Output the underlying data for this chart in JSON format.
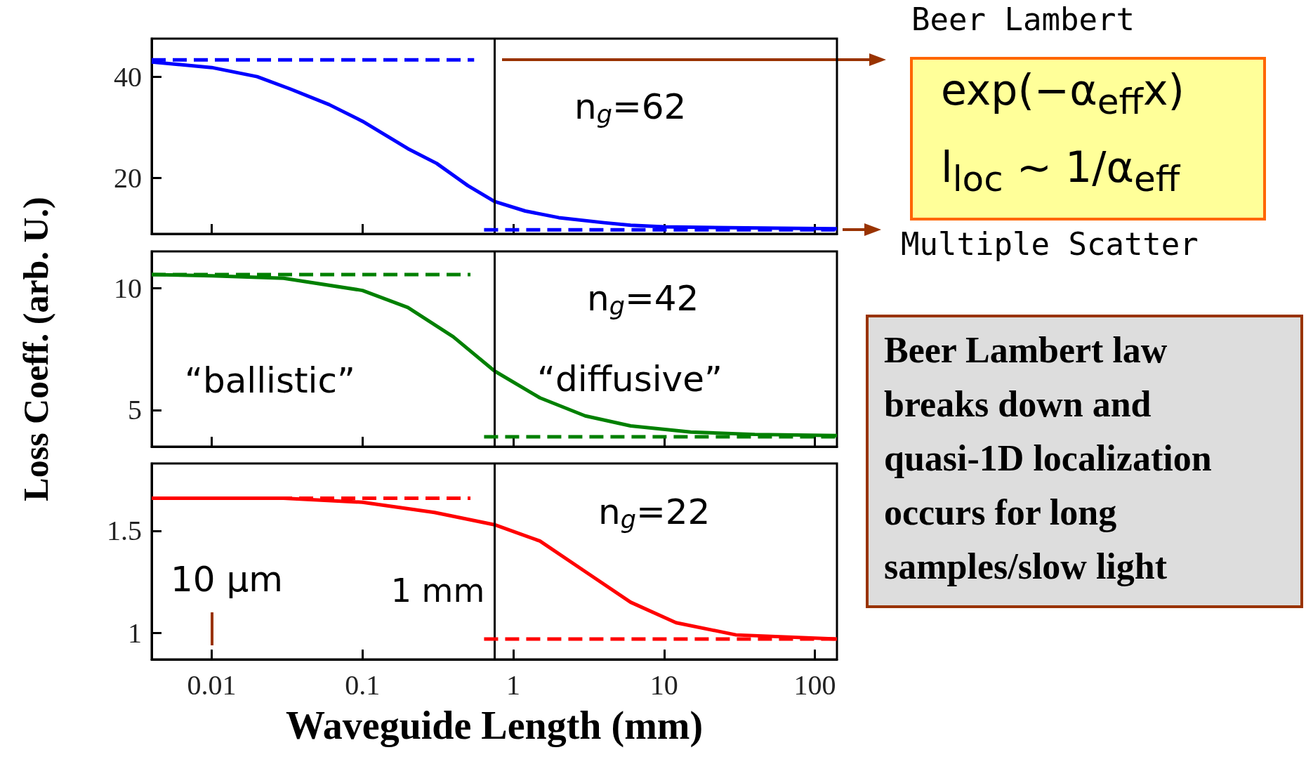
{
  "chart_data": [
    {
      "type": "line",
      "xlim": [
        0.004,
        140
      ],
      "xticks": [
        0.01,
        0.1,
        1,
        10,
        100
      ],
      "ylim": [
        9,
        47.5
      ],
      "yticks": [
        20,
        40
      ],
      "log": "x",
      "grid": false,
      "marker": "none",
      "tick_labels": "y",
      "series": [
        {
          "color": "#0000ff",
          "x": [
            0.004,
            0.01,
            0.02,
            0.033,
            0.06,
            0.1,
            0.2,
            0.31,
            0.5,
            0.75,
            1.2,
            2,
            4,
            6,
            10,
            27,
            60,
            140
          ],
          "values": [
            42.9,
            41.8,
            40,
            37.6,
            34.5,
            31.2,
            25.8,
            22.9,
            18.5,
            15.4,
            13.5,
            12.2,
            11.2,
            10.7,
            10.4,
            10.2,
            10.1,
            10
          ]
        },
        {
          "color": "#0000ff",
          "line_style": "dashed",
          "x": [
            0.004,
            0.55
          ],
          "values": [
            43.3,
            43.3
          ]
        },
        {
          "color": "#0000ff",
          "line_style": "dashed",
          "x": [
            0.64,
            140
          ],
          "values": [
            9.8,
            9.8
          ]
        }
      ],
      "ref_lines": [
        {
          "axis": "x",
          "value": 0.75,
          "color": "#000000"
        }
      ],
      "annotations": [
        "n$_{g}$=62"
      ]
    },
    {
      "type": "line",
      "ylabel": "Loss Coeff. (arb. U.)",
      "xlim": [
        0.004,
        140
      ],
      "xticks": [
        0.01,
        0.1,
        1,
        10,
        100
      ],
      "ylim": [
        3.5,
        11.5
      ],
      "yticks": [
        5,
        10
      ],
      "log": "x",
      "grid": false,
      "marker": "none",
      "tick_labels": "y",
      "series": [
        {
          "color": "#008000",
          "x": [
            0.004,
            0.01,
            0.03,
            0.1,
            0.2,
            0.4,
            0.75,
            1.5,
            3,
            6,
            15,
            40,
            140
          ],
          "values": [
            10.55,
            10.5,
            10.4,
            9.9,
            9.2,
            8,
            6.6,
            5.5,
            4.76,
            4.35,
            4.1,
            4,
            3.95
          ]
        },
        {
          "color": "#008000",
          "line_style": "dashed",
          "x": [
            0.004,
            0.52
          ],
          "values": [
            10.55,
            10.55
          ]
        },
        {
          "color": "#008000",
          "line_style": "dashed",
          "x": [
            0.64,
            140
          ],
          "values": [
            3.9,
            3.9
          ]
        }
      ],
      "ref_lines": [
        {
          "axis": "x",
          "value": 0.75,
          "color": "#000000"
        }
      ],
      "annotations": [
        "n$_{g}$=42",
        "“ballistic”",
        "“diffusive”"
      ]
    },
    {
      "type": "line",
      "xlabel": "Waveguide Length (mm)",
      "xlim": [
        0.004,
        140
      ],
      "xticks": [
        0.01,
        0.1,
        1,
        10,
        100
      ],
      "ylim": [
        0.87,
        1.83
      ],
      "yticks": [
        1,
        1.5
      ],
      "log": "x",
      "grid": false,
      "marker": "none",
      "series": [
        {
          "color": "#ff0000",
          "x": [
            0.004,
            0.03,
            0.1,
            0.3,
            0.75,
            1.5,
            3,
            6,
            12,
            30,
            140
          ],
          "values": [
            1.66,
            1.66,
            1.64,
            1.59,
            1.53,
            1.45,
            1.3,
            1.15,
            1.05,
            0.99,
            0.97
          ]
        },
        {
          "color": "#ff0000",
          "line_style": "dashed",
          "x": [
            0.004,
            0.52
          ],
          "values": [
            1.66,
            1.66
          ]
        },
        {
          "color": "#ff0000",
          "line_style": "dashed",
          "x": [
            0.64,
            140
          ],
          "values": [
            0.97,
            0.97
          ]
        }
      ],
      "ref_lines": [
        {
          "axis": "x",
          "value": 0.75,
          "color": "#000000",
          "label": "1 mm"
        }
      ],
      "annotations": [
        "n$_{g}$=22",
        "10 μm"
      ]
    },
    {
      "type": "other",
      "annotations": [
        "Beer Lambert",
        "exp(−α$_{eff}$x)",
        "l$_{loc}$ ∼ 1/α$_{eff}$",
        "Multiple Scatter"
      ]
    },
    {
      "type": "other",
      "annotations": [
        "Beer Lambert law breaks down and quasi-1D localization occurs for long samples/slow light"
      ]
    }
  ]
}
